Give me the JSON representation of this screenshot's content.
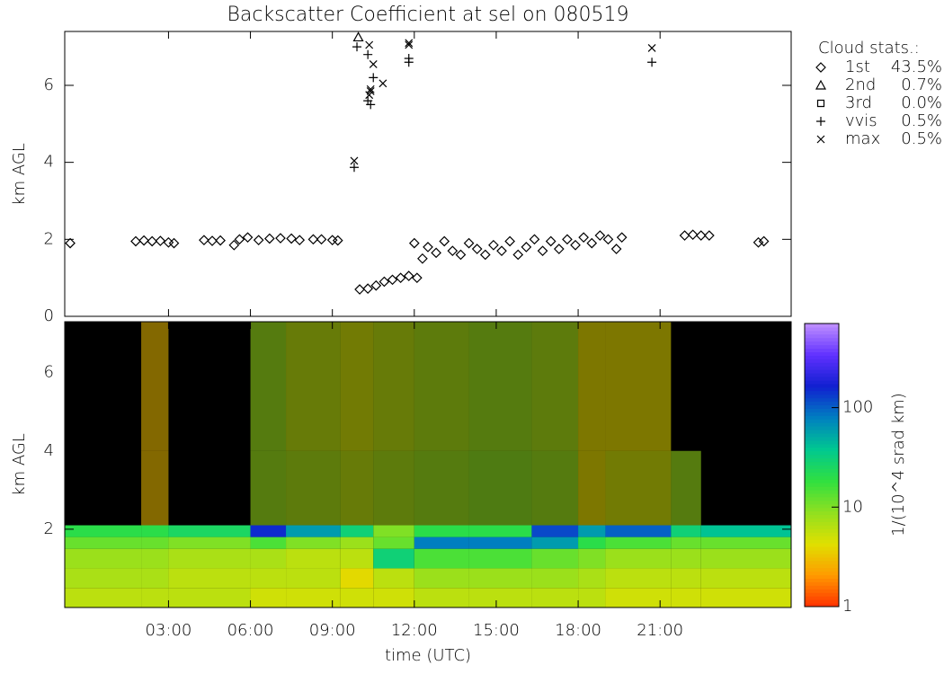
{
  "chart_data": [
    {
      "type": "scatter",
      "title": "Backscatter Coefficient at sel on 080519",
      "ylabel": "km AGL",
      "xlim": [
        -0.8,
        25.8
      ],
      "ylim": [
        0,
        7.4
      ],
      "xticks": [
        3,
        6,
        9,
        12,
        15,
        18,
        21
      ],
      "yticks": [
        0,
        2,
        4,
        6
      ],
      "color": "#000000",
      "legend_title": "Cloud stats.:",
      "series": [
        {
          "name": "1st",
          "marker": "diamond",
          "stat": "43.5%",
          "x": [
            -0.6,
            1.8,
            2.1,
            2.4,
            2.7,
            3.0,
            3.2,
            4.3,
            4.6,
            4.9,
            5.4,
            5.6,
            5.9,
            6.3,
            6.7,
            7.1,
            7.5,
            7.8,
            8.3,
            8.6,
            9.0,
            9.2,
            10.0,
            10.3,
            10.6,
            10.9,
            11.2,
            11.5,
            11.8,
            12.1,
            12.0,
            12.3,
            12.5,
            12.8,
            13.1,
            13.4,
            13.7,
            14.0,
            14.3,
            14.6,
            14.9,
            15.2,
            15.5,
            15.8,
            16.1,
            16.4,
            16.7,
            17.0,
            17.3,
            17.6,
            17.9,
            18.2,
            18.5,
            18.8,
            19.1,
            19.4,
            19.6,
            21.9,
            22.2,
            22.5,
            22.8,
            24.6,
            24.8
          ],
          "values": [
            1.9,
            1.95,
            1.97,
            1.95,
            1.96,
            1.92,
            1.9,
            1.98,
            1.96,
            1.97,
            1.85,
            2.0,
            2.05,
            1.98,
            2.02,
            2.03,
            2.02,
            1.98,
            2.0,
            2.0,
            1.98,
            1.97,
            0.7,
            0.72,
            0.8,
            0.9,
            0.95,
            1.0,
            1.05,
            1.0,
            1.9,
            1.5,
            1.8,
            1.65,
            1.95,
            1.7,
            1.6,
            1.9,
            1.75,
            1.6,
            1.85,
            1.7,
            1.95,
            1.6,
            1.8,
            2.0,
            1.7,
            1.95,
            1.75,
            2.0,
            1.85,
            2.05,
            1.9,
            2.1,
            2.0,
            1.75,
            2.05,
            2.1,
            2.12,
            2.1,
            2.1,
            1.92,
            1.95
          ]
        },
        {
          "name": "2nd",
          "marker": "triangle",
          "stat": "0.7%",
          "x": [
            9.95
          ],
          "values": [
            7.25
          ]
        },
        {
          "name": "3rd",
          "marker": "square",
          "stat": "0.0%",
          "x": [],
          "values": []
        },
        {
          "name": "vvis",
          "marker": "plus",
          "stat": "0.5%",
          "x": [
            9.8,
            9.9,
            10.3,
            10.5,
            10.4,
            10.3,
            11.8,
            11.8,
            20.7
          ],
          "values": [
            3.87,
            7.0,
            6.8,
            6.2,
            5.5,
            5.6,
            6.7,
            6.6,
            6.6
          ]
        },
        {
          "name": "max",
          "marker": "cross",
          "stat": "0.5%",
          "x": [
            9.8,
            10.35,
            10.5,
            10.4,
            10.35,
            10.4,
            10.85,
            11.8,
            11.8,
            20.7
          ],
          "values": [
            4.04,
            7.05,
            6.55,
            5.9,
            5.75,
            5.85,
            6.05,
            7.1,
            7.05,
            6.97
          ]
        }
      ]
    },
    {
      "type": "heatmap",
      "ylabel": "km AGL",
      "xlabel": "time (UTC)",
      "xlim": [
        -0.8,
        25.8
      ],
      "ylim": [
        0,
        7.3
      ],
      "xticks": [
        {
          "value": 3,
          "label": "03:00"
        },
        {
          "value": 6,
          "label": "06:00"
        },
        {
          "value": 9,
          "label": "09:00"
        },
        {
          "value": 12,
          "label": "12:00"
        },
        {
          "value": 15,
          "label": "15:00"
        },
        {
          "value": 18,
          "label": "18:00"
        },
        {
          "value": 21,
          "label": "21:00"
        }
      ],
      "yticks": [
        2,
        4,
        6
      ],
      "x_edges": [
        -0.8,
        2,
        3,
        6,
        7.3,
        9.3,
        10.5,
        12,
        14,
        16.3,
        18,
        19,
        21.4,
        22.5,
        25.8
      ],
      "y_edges": [
        0,
        0.5,
        1,
        1.5,
        1.8,
        2.1,
        4,
        7.3
      ],
      "z": [
        [
          6,
          6,
          6,
          5,
          5,
          5,
          5,
          6,
          6,
          6,
          6,
          5,
          5,
          5
        ],
        [
          7,
          7,
          6,
          6,
          6,
          4,
          6,
          8,
          8,
          8,
          7,
          6,
          6,
          6
        ],
        [
          8,
          8,
          7,
          7,
          6,
          6,
          30,
          15,
          15,
          12,
          10,
          8,
          8,
          8
        ],
        [
          12,
          12,
          10,
          15,
          10,
          8,
          12,
          80,
          80,
          60,
          20,
          15,
          12,
          12
        ],
        [
          20,
          20,
          25,
          150,
          60,
          30,
          10,
          20,
          20,
          120,
          60,
          100,
          30,
          40
        ],
        [
          null,
          3,
          null,
          8,
          7,
          6,
          7,
          8,
          9,
          8,
          4,
          5,
          8,
          null
        ],
        [
          null,
          3,
          null,
          8,
          6,
          5,
          6,
          7,
          8,
          7,
          4,
          4,
          null,
          null
        ]
      ],
      "colorbar": {
        "label": "1/(10^4 srad km)",
        "lim": [
          1,
          700
        ],
        "ticks": [
          1,
          10,
          100
        ],
        "log": true
      },
      "colormap": [
        "#ff3000",
        "#ff9a00",
        "#e0e000",
        "#90e020",
        "#30e040",
        "#00c890",
        "#0080c0",
        "#1020d0",
        "#6030ff",
        "#c090ff"
      ]
    }
  ]
}
